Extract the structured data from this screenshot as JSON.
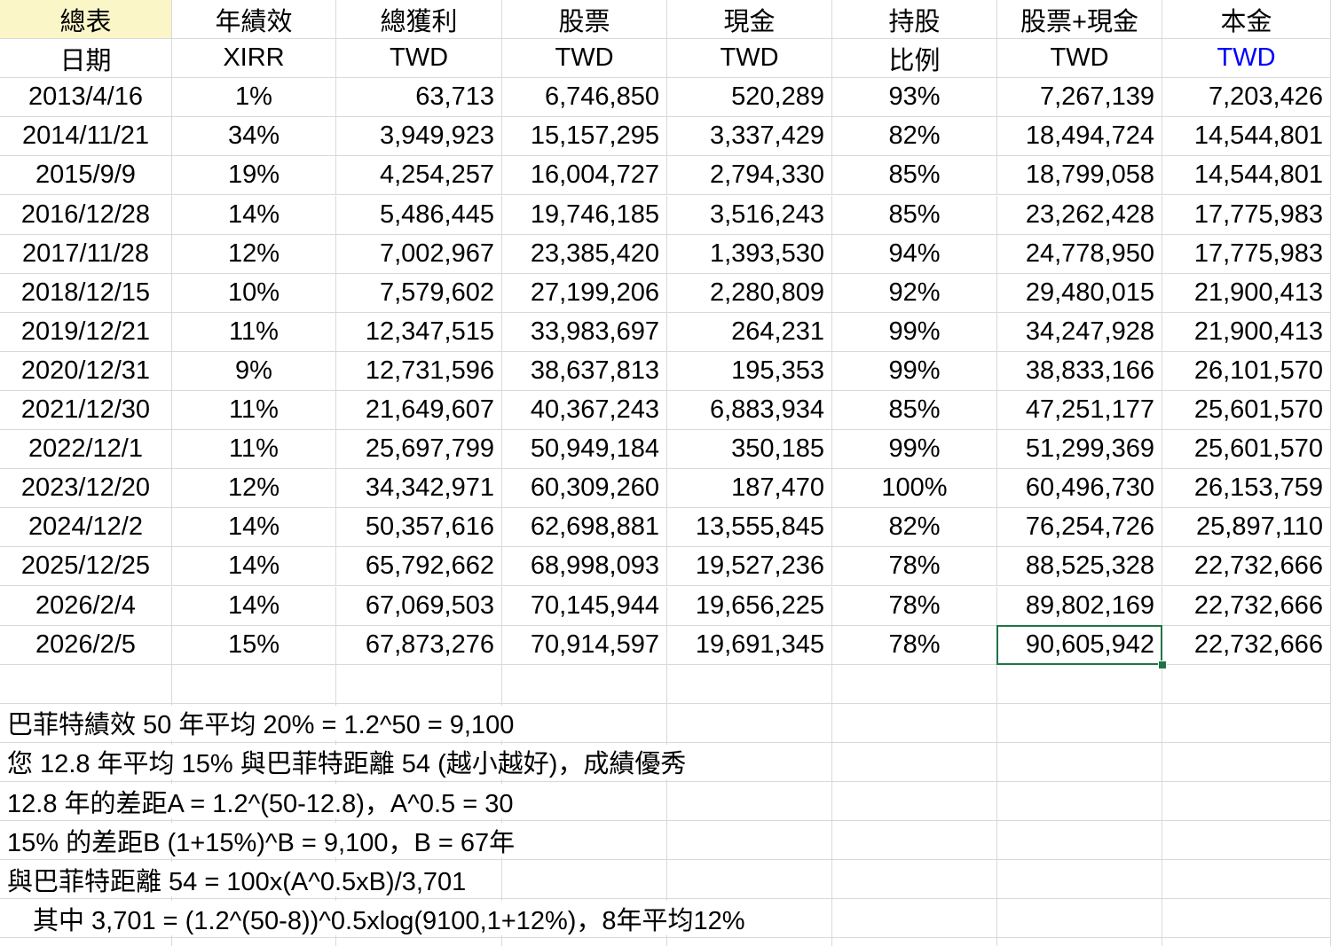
{
  "sheet": {
    "header_row1": [
      "總表",
      "年績效",
      "總獲利",
      "股票",
      "現金",
      "持股",
      "股票+現金",
      "本金"
    ],
    "header_row2": [
      "日期",
      "XIRR",
      "TWD",
      "TWD",
      "TWD",
      "比例",
      "TWD",
      "TWD"
    ],
    "rows": [
      [
        "2013/4/16",
        "1%",
        "63,713",
        "6,746,850",
        "520,289",
        "93%",
        "7,267,139",
        "7,203,426"
      ],
      [
        "2014/11/21",
        "34%",
        "3,949,923",
        "15,157,295",
        "3,337,429",
        "82%",
        "18,494,724",
        "14,544,801"
      ],
      [
        "2015/9/9",
        "19%",
        "4,254,257",
        "16,004,727",
        "2,794,330",
        "85%",
        "18,799,058",
        "14,544,801"
      ],
      [
        "2016/12/28",
        "14%",
        "5,486,445",
        "19,746,185",
        "3,516,243",
        "85%",
        "23,262,428",
        "17,775,983"
      ],
      [
        "2017/11/28",
        "12%",
        "7,002,967",
        "23,385,420",
        "1,393,530",
        "94%",
        "24,778,950",
        "17,775,983"
      ],
      [
        "2018/12/15",
        "10%",
        "7,579,602",
        "27,199,206",
        "2,280,809",
        "92%",
        "29,480,015",
        "21,900,413"
      ],
      [
        "2019/12/21",
        "11%",
        "12,347,515",
        "33,983,697",
        "264,231",
        "99%",
        "34,247,928",
        "21,900,413"
      ],
      [
        "2020/12/31",
        "9%",
        "12,731,596",
        "38,637,813",
        "195,353",
        "99%",
        "38,833,166",
        "26,101,570"
      ],
      [
        "2021/12/30",
        "11%",
        "21,649,607",
        "40,367,243",
        "6,883,934",
        "85%",
        "47,251,177",
        "25,601,570"
      ],
      [
        "2022/12/1",
        "11%",
        "25,697,799",
        "50,949,184",
        "350,185",
        "99%",
        "51,299,369",
        "25,601,570"
      ],
      [
        "2023/12/20",
        "12%",
        "34,342,971",
        "60,309,260",
        "187,470",
        "100%",
        "60,496,730",
        "26,153,759"
      ],
      [
        "2024/12/2",
        "14%",
        "50,357,616",
        "62,698,881",
        "13,555,845",
        "82%",
        "76,254,726",
        "25,897,110"
      ],
      [
        "2025/12/25",
        "14%",
        "65,792,662",
        "68,998,093",
        "19,527,236",
        "78%",
        "88,525,328",
        "22,732,666"
      ],
      [
        "2026/2/4",
        "14%",
        "67,069,503",
        "70,145,944",
        "19,656,225",
        "78%",
        "89,802,169",
        "22,732,666"
      ],
      [
        "2026/2/5",
        "15%",
        "67,873,276",
        "70,914,597",
        "19,691,345",
        "78%",
        "90,605,942",
        "22,732,666"
      ]
    ],
    "selection": {
      "data_row_index": 14,
      "col_index": 6,
      "value": "90,605,942"
    }
  },
  "notes": {
    "lines": [
      "巴菲特績效 50 年平均 20% = 1.2^50 = 9,100",
      "您 12.8 年平均 15% 與巴菲特距離 54 (越小越好)，成績優秀",
      "12.8 年的差距A = 1.2^(50-12.8)，A^0.5 = 30",
      "15% 的差距B (1+15%)^B = 9,100，B = 67年",
      "與巴菲特距離 54 = 100x(A^0.5xB)/3,701",
      "　其中 3,701 = (1.2^(50-8))^0.5xlog(9100,1+12%)，8年平均12%"
    ]
  },
  "colors": {
    "title_highlight": "#FAF6C8",
    "principal_twd_blue": "#0000FF",
    "selection_green": "#217346",
    "gridline": "#D9D9D9",
    "text": "#000000",
    "background": "#FFFFFF"
  }
}
